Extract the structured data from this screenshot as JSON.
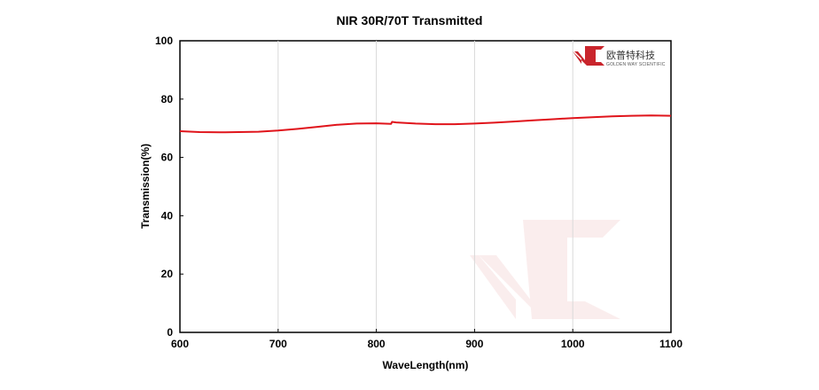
{
  "chart_data": {
    "type": "line",
    "title": "NIR 30R/70T Transmitted",
    "xlabel": "WaveLength(nm)",
    "ylabel": "Transmission(%)",
    "xlim": [
      600,
      1100
    ],
    "ylim": [
      0,
      100
    ],
    "xticks": [
      600,
      700,
      800,
      900,
      1000,
      1100
    ],
    "yticks": [
      0,
      20,
      40,
      60,
      80,
      100
    ],
    "grid": "vertical",
    "series": [
      {
        "color": "#e0141b",
        "x": [
          600,
          620,
          640,
          660,
          680,
          700,
          720,
          740,
          760,
          780,
          800,
          815,
          816,
          820,
          840,
          860,
          880,
          900,
          920,
          940,
          960,
          980,
          1000,
          1020,
          1040,
          1060,
          1080,
          1100
        ],
        "y": [
          69.0,
          68.7,
          68.6,
          68.7,
          68.8,
          69.2,
          69.8,
          70.5,
          71.2,
          71.6,
          71.7,
          71.5,
          72.2,
          72.0,
          71.6,
          71.4,
          71.4,
          71.6,
          71.9,
          72.3,
          72.7,
          73.1,
          73.5,
          73.8,
          74.1,
          74.3,
          74.4,
          74.3
        ]
      }
    ]
  },
  "logo": {
    "name": "欧普特科技",
    "subtitle": "GOLDEN WAY SCIENTIFIC",
    "color": "#c9252c"
  }
}
